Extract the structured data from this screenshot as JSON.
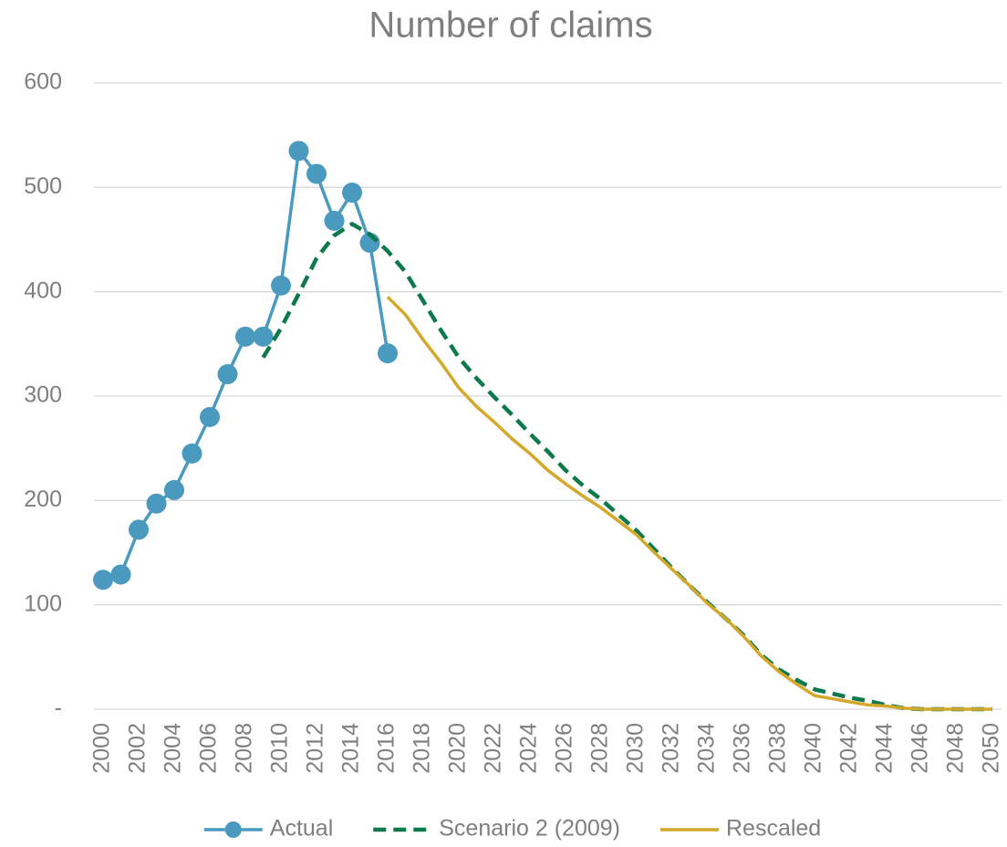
{
  "chart_data": {
    "type": "line",
    "title": "Number of claims",
    "x": [
      2000,
      2001,
      2002,
      2003,
      2004,
      2005,
      2006,
      2007,
      2008,
      2009,
      2010,
      2011,
      2012,
      2013,
      2014,
      2015,
      2016,
      2017,
      2018,
      2019,
      2020,
      2021,
      2022,
      2023,
      2024,
      2025,
      2026,
      2027,
      2028,
      2029,
      2030,
      2031,
      2032,
      2033,
      2034,
      2035,
      2036,
      2037,
      2038,
      2039,
      2040,
      2041,
      2042,
      2043,
      2044,
      2045,
      2046,
      2047,
      2048,
      2049,
      2050
    ],
    "series": [
      {
        "name": "Actual",
        "color": "#4a9abf",
        "line_style": "solid",
        "marker": "circle",
        "values": [
          124,
          129,
          172,
          197,
          210,
          245,
          280,
          321,
          357,
          357,
          406,
          535,
          513,
          468,
          495,
          447,
          341,
          null,
          null,
          null,
          null,
          null,
          null,
          null,
          null,
          null,
          null,
          null,
          null,
          null,
          null,
          null,
          null,
          null,
          null,
          null,
          null,
          null,
          null,
          null,
          null,
          null,
          null,
          null,
          null,
          null,
          null,
          null,
          null,
          null,
          null
        ]
      },
      {
        "name": "Scenario 2 (2009)",
        "color": "#0e7a4c",
        "line_style": "dashed",
        "marker": "none",
        "values": [
          null,
          null,
          null,
          null,
          null,
          null,
          null,
          null,
          null,
          337,
          365,
          398,
          432,
          454,
          465,
          455,
          439,
          419,
          391,
          363,
          337,
          317,
          299,
          282,
          264,
          247,
          229,
          214,
          201,
          186,
          171,
          153,
          135,
          118,
          102,
          87,
          71,
          52,
          38,
          28,
          19,
          15,
          11,
          8,
          4,
          1,
          0,
          0,
          0,
          0,
          0
        ]
      },
      {
        "name": "Rescaled",
        "color": "#d4a82a",
        "line_style": "solid",
        "marker": "none",
        "values": [
          null,
          null,
          null,
          null,
          null,
          null,
          null,
          null,
          null,
          null,
          null,
          null,
          null,
          null,
          null,
          null,
          395,
          378,
          354,
          332,
          308,
          290,
          275,
          259,
          245,
          229,
          216,
          204,
          193,
          180,
          167,
          150,
          134,
          118,
          101,
          87,
          70,
          51,
          36,
          24,
          13,
          10,
          7,
          4,
          3,
          1,
          0,
          0,
          0,
          0,
          0
        ]
      }
    ],
    "xlim": [
      2000,
      2050
    ],
    "xticks": [
      2000,
      2002,
      2004,
      2006,
      2008,
      2010,
      2012,
      2014,
      2016,
      2018,
      2020,
      2022,
      2024,
      2026,
      2028,
      2030,
      2032,
      2034,
      2036,
      2038,
      2040,
      2042,
      2044,
      2046,
      2048,
      2050
    ],
    "ylim": [
      0,
      600
    ],
    "yticks": [
      {
        "value": 0,
        "label": "-"
      },
      100,
      200,
      300,
      400,
      500,
      600
    ],
    "grid": true,
    "legend": "bottom"
  }
}
